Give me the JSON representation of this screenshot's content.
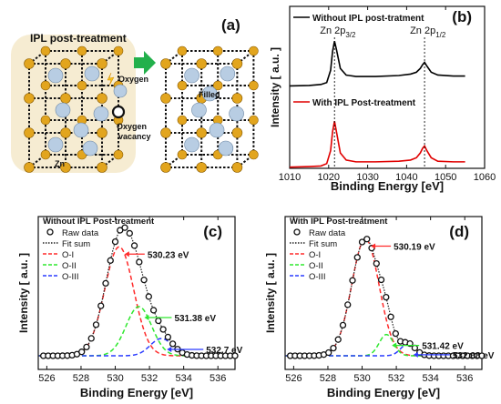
{
  "panels": {
    "a": {
      "tag": "(a)",
      "title": "IPL post-treatment",
      "labels": {
        "oxygen": "Oxygen",
        "vacancy_line1": "Oxygen",
        "vacancy_line2": "vacancy",
        "filled": "Filled",
        "zn": "Zn"
      },
      "colors": {
        "zn_atom": "#e2a51e",
        "o_atom": "#b8cde3",
        "background": "#f6ecd2",
        "arrow": "#22b04b"
      }
    }
  },
  "chart_data": [
    {
      "id": "b",
      "type": "line",
      "tag": "(b)",
      "xlabel": "Binding Energy [eV]",
      "ylabel": "Intensity [ a.u. ]",
      "xlim": [
        1010,
        1060
      ],
      "xticks": [
        "1010",
        "1020",
        "1030",
        "1040",
        "1050",
        "1060"
      ],
      "legend": "top-left",
      "peak_labels": [
        {
          "base": "Zn 2p",
          "sub": "3/2",
          "x": 1021.5
        },
        {
          "base": "Zn 2p",
          "sub": "1/2",
          "x": 1044.6
        }
      ],
      "series": [
        {
          "name": "Without IPL post-tratment",
          "color": "#000000",
          "x": [
            1010,
            1015,
            1018,
            1019.5,
            1020.5,
            1021,
            1021.5,
            1022,
            1023,
            1024.5,
            1027,
            1032,
            1038,
            1041,
            1042.5,
            1043.5,
            1044.1,
            1044.6,
            1045.2,
            1046.3,
            1048,
            1052,
            1055
          ],
          "y": [
            0.05,
            0.06,
            0.08,
            0.12,
            0.38,
            0.78,
            1.0,
            0.82,
            0.42,
            0.28,
            0.25,
            0.25,
            0.27,
            0.3,
            0.34,
            0.42,
            0.5,
            0.55,
            0.47,
            0.34,
            0.28,
            0.26,
            0.26
          ]
        },
        {
          "name": "With IPL Post-treatment",
          "color": "#e00000",
          "x": [
            1010,
            1015,
            1018,
            1019.5,
            1020.5,
            1021,
            1021.5,
            1022,
            1023,
            1024.5,
            1027,
            1032,
            1038,
            1041,
            1042.5,
            1043.5,
            1044.1,
            1044.6,
            1045.2,
            1046.3,
            1048,
            1052,
            1055
          ],
          "y": [
            0.02,
            0.03,
            0.04,
            0.08,
            0.3,
            0.62,
            0.8,
            0.62,
            0.26,
            0.14,
            0.11,
            0.11,
            0.12,
            0.14,
            0.18,
            0.26,
            0.34,
            0.38,
            0.3,
            0.18,
            0.12,
            0.11,
            0.11
          ]
        }
      ]
    },
    {
      "id": "c",
      "type": "scatter",
      "tag": "(c)",
      "xlabel": "Binding Energy [eV]",
      "ylabel": "Intensity [ a.u. ]",
      "xlim": [
        525.5,
        537
      ],
      "xticks": [
        "526",
        "528",
        "530",
        "532",
        "534",
        "536"
      ],
      "legend": "top-left",
      "legend_title": "Without IPL Post-treatment",
      "legend_entries": [
        "Raw data",
        "Fit sum",
        "O-I",
        "O-II",
        "O-III"
      ],
      "peaks": [
        {
          "name": "O-I",
          "center": 530.23,
          "height": 0.82,
          "width": 0.85,
          "color": "#ff2a2a",
          "label": "530.23 eV"
        },
        {
          "name": "O-II",
          "center": 531.38,
          "height": 0.37,
          "width": 0.75,
          "color": "#2ee82e",
          "label": "531.38 eV"
        },
        {
          "name": "O-III",
          "center": 532.7,
          "height": 0.13,
          "width": 0.65,
          "color": "#2a3bff",
          "label": "532.7 eV"
        }
      ]
    },
    {
      "id": "d",
      "type": "scatter",
      "tag": "(d)",
      "xlabel": "Binding Energy [eV]",
      "ylabel": "Intensity [ a.u. ]",
      "xlim": [
        525.5,
        537
      ],
      "xticks": [
        "526",
        "528",
        "530",
        "532",
        "534",
        "536"
      ],
      "legend": "top-left",
      "legend_title": "With IPL Post-treatment",
      "legend_entries": [
        "Raw data",
        "Fit sum",
        "O-I",
        "O-II",
        "O-III"
      ],
      "peaks": [
        {
          "name": "O-I",
          "center": 530.19,
          "height": 0.88,
          "width": 0.8,
          "color": "#ff2a2a",
          "label": "530.19 eV"
        },
        {
          "name": "O-II",
          "center": 531.42,
          "height": 0.16,
          "width": 0.42,
          "color": "#2ee82e",
          "label": "531.42 eV"
        },
        {
          "name": "O-III",
          "center": 532.68,
          "height": 0.09,
          "width": 0.42,
          "color": "#2a3bff",
          "label": "532.68 eV"
        }
      ]
    }
  ]
}
